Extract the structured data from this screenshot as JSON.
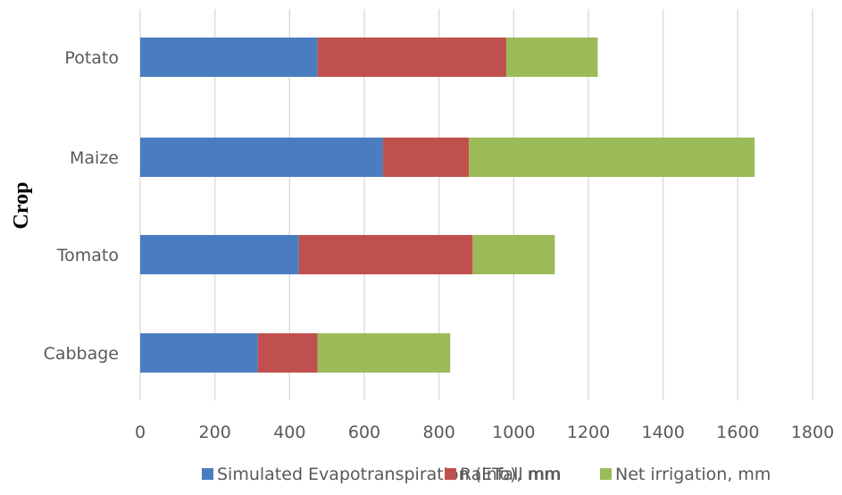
{
  "chart_data": {
    "type": "bar",
    "orientation": "horizontal",
    "stacked": true,
    "title": "",
    "xlabel": "",
    "ylabel": "Crop",
    "categories": [
      "Potato",
      "Maize",
      "Tomato",
      "Cabbage"
    ],
    "series": [
      {
        "name": "Simulated Evapotranspiration (ETo), mm",
        "color": "#4a7dbf",
        "values": [
          475,
          650,
          425,
          315
        ]
      },
      {
        "name": "Rainfall mm",
        "color": "#c0504d",
        "values": [
          505,
          230,
          465,
          160
        ]
      },
      {
        "name": "Net irrigation, mm",
        "color": "#9bbb59",
        "values": [
          245,
          765,
          220,
          355
        ]
      }
    ],
    "xlim": [
      0,
      1800
    ],
    "xticks": [
      "0",
      "200",
      "400",
      "600",
      "800",
      "1000",
      "1200",
      "1400",
      "1600",
      "1800"
    ],
    "grid": true,
    "legend_position": "bottom"
  }
}
